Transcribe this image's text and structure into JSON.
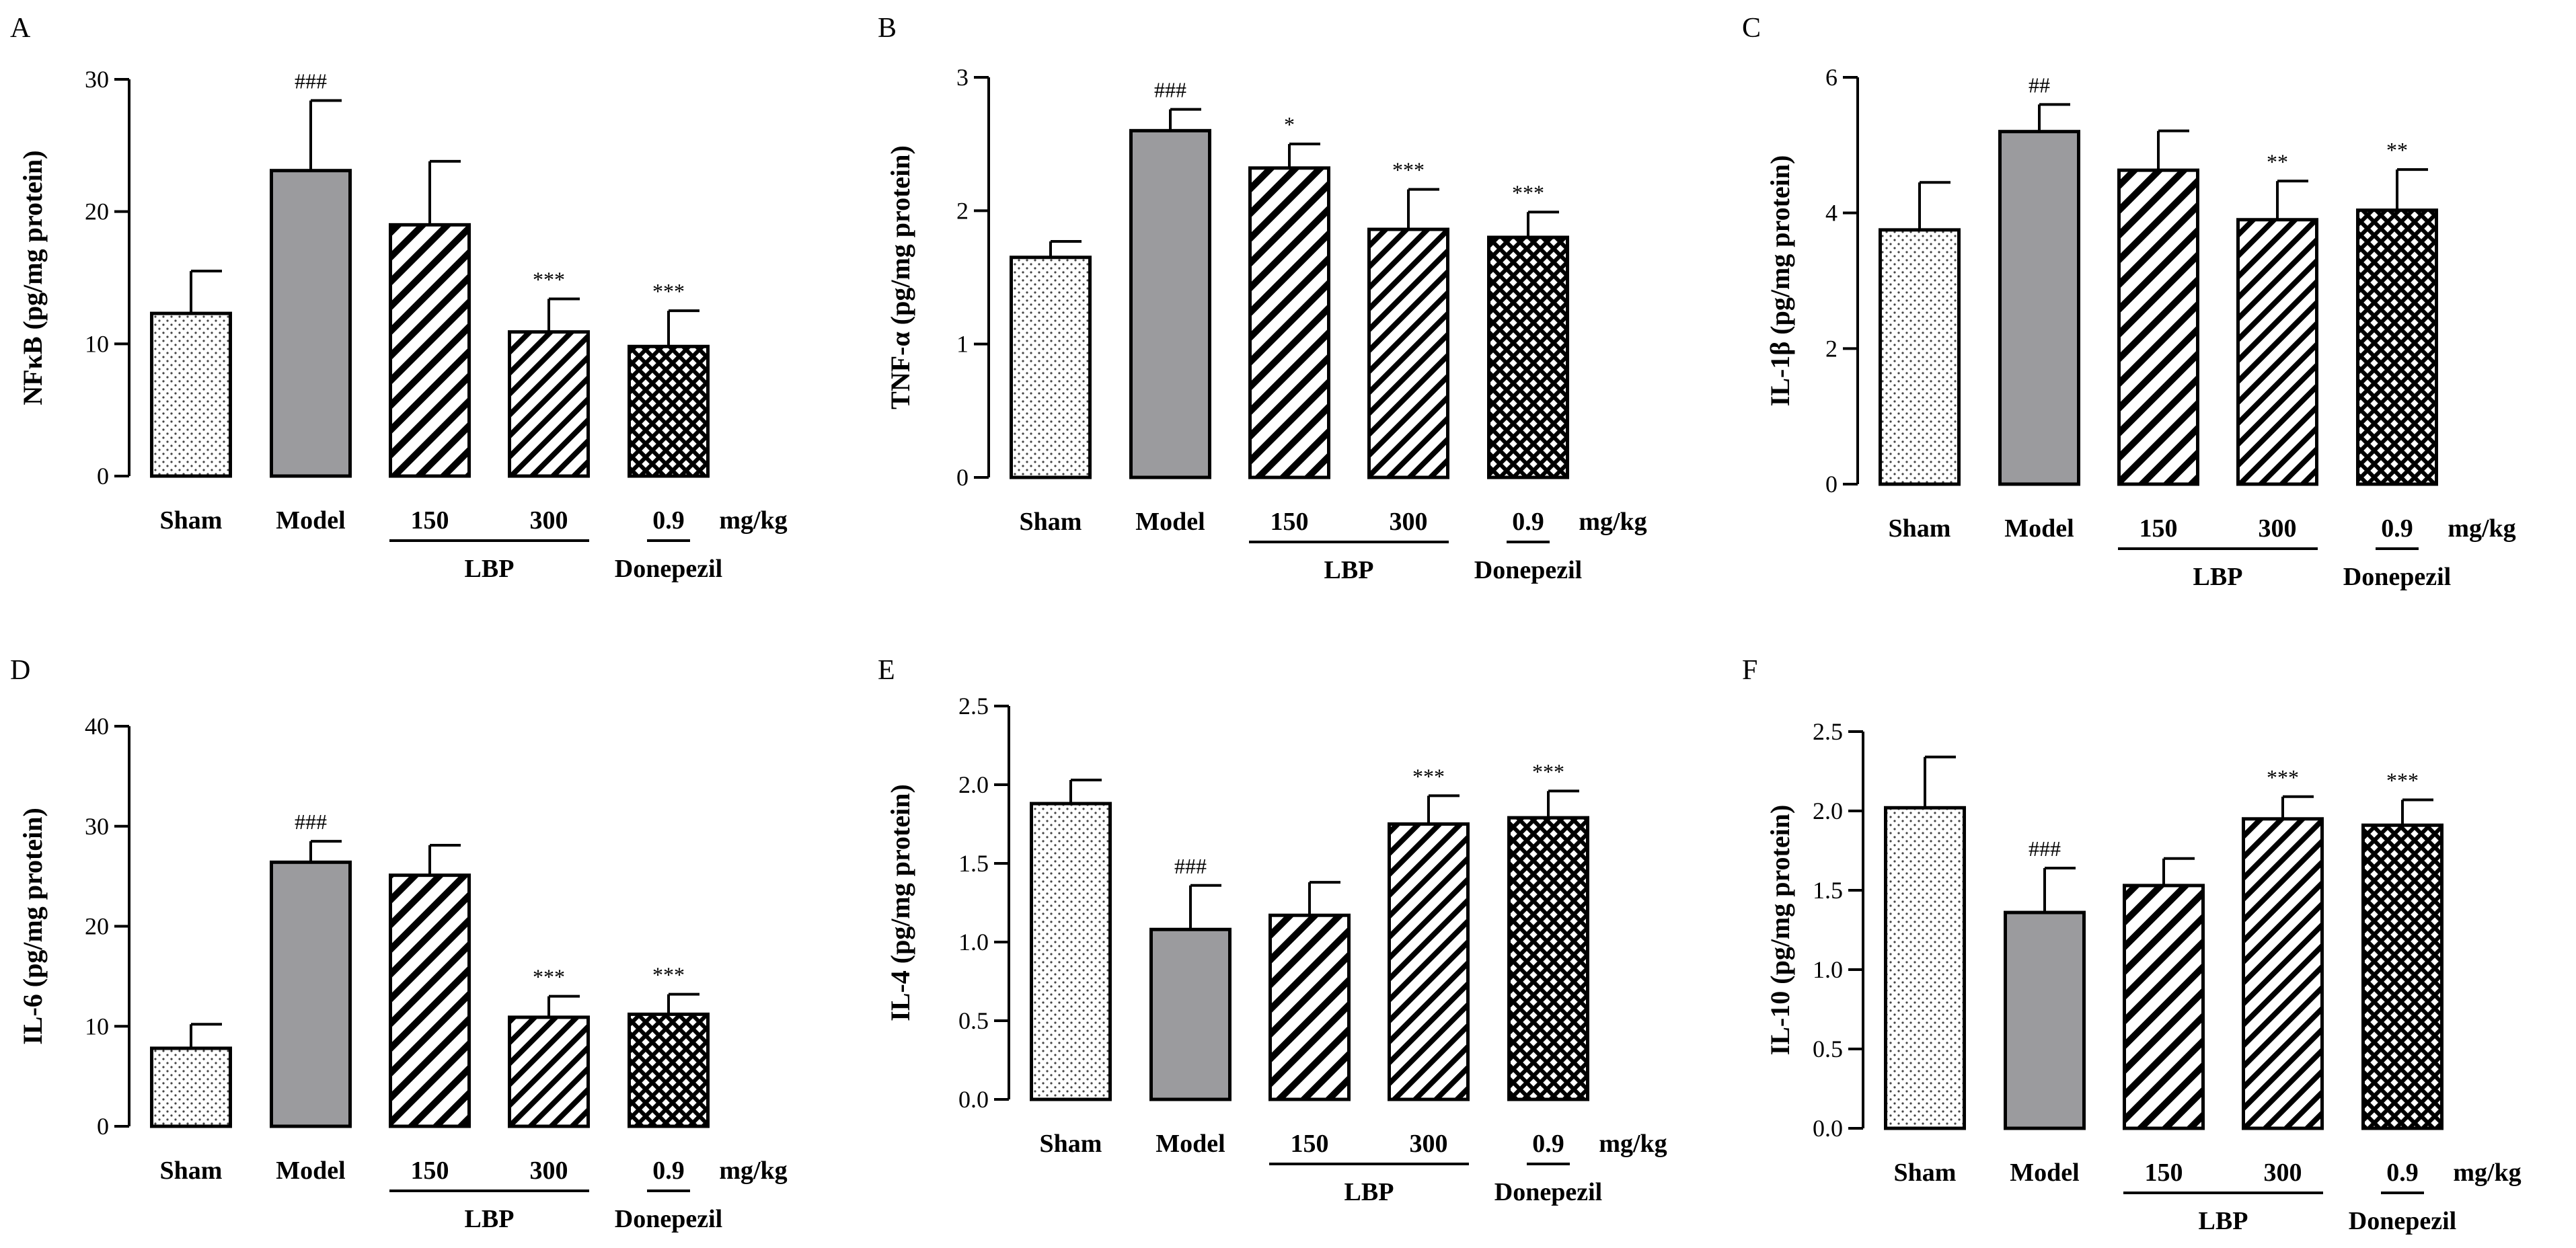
{
  "chart_data": [
    {
      "type": "bar",
      "panel": "A",
      "ylabel": "NFκB (pg/mg protein)",
      "ylim": [
        0,
        30
      ],
      "yticks": [
        0,
        10,
        20,
        30
      ],
      "tick_labels": [
        "0",
        "10",
        "20",
        "30"
      ],
      "categories": [
        "Sham",
        "Model",
        "150",
        "300",
        "0.9"
      ],
      "values": [
        12.3,
        23.1,
        19.0,
        10.9,
        9.8
      ],
      "errors": [
        3.2,
        5.3,
        4.8,
        2.5,
        2.7
      ],
      "annotations": [
        "",
        "###",
        "",
        "***",
        "***"
      ],
      "unit": "mg/kg",
      "groups": [
        {
          "label": "LBP",
          "categories": [
            "150",
            "300"
          ]
        },
        {
          "label": "Donepezil",
          "categories": [
            "0.9"
          ]
        }
      ]
    },
    {
      "type": "bar",
      "panel": "B",
      "ylabel": "TNF-α (pg/mg protein)",
      "ylim": [
        0,
        3
      ],
      "yticks": [
        0,
        1,
        2,
        3
      ],
      "tick_labels": [
        "0",
        "1",
        "2",
        "3"
      ],
      "categories": [
        "Sham",
        "Model",
        "150",
        "300",
        "0.9"
      ],
      "values": [
        1.65,
        2.6,
        2.32,
        1.86,
        1.8
      ],
      "errors": [
        0.12,
        0.16,
        0.18,
        0.3,
        0.19
      ],
      "annotations": [
        "",
        "###",
        "*",
        "***",
        "***"
      ],
      "unit": "mg/kg",
      "groups": [
        {
          "label": "LBP",
          "categories": [
            "150",
            "300"
          ]
        },
        {
          "label": "Donepezil",
          "categories": [
            "0.9"
          ]
        }
      ]
    },
    {
      "type": "bar",
      "panel": "C",
      "ylabel": "IL-1β (pg/mg protein)",
      "ylim": [
        0,
        6
      ],
      "yticks": [
        0,
        2,
        4,
        6
      ],
      "tick_labels": [
        "0",
        "2",
        "4",
        "6"
      ],
      "categories": [
        "Sham",
        "Model",
        "150",
        "300",
        "0.9"
      ],
      "values": [
        3.75,
        5.2,
        4.63,
        3.9,
        4.04
      ],
      "errors": [
        0.7,
        0.4,
        0.58,
        0.57,
        0.6
      ],
      "annotations": [
        "",
        "##",
        "",
        "**",
        "**"
      ],
      "unit": "mg/kg",
      "groups": [
        {
          "label": "LBP",
          "categories": [
            "150",
            "300"
          ]
        },
        {
          "label": "Donepezil",
          "categories": [
            "0.9"
          ]
        }
      ]
    },
    {
      "type": "bar",
      "panel": "D",
      "ylabel": "IL-6 (pg/mg protein)",
      "ylim": [
        0,
        40
      ],
      "yticks": [
        0,
        10,
        20,
        30,
        40
      ],
      "tick_labels": [
        "0",
        "10",
        "20",
        "30",
        "40"
      ],
      "categories": [
        "Sham",
        "Model",
        "150",
        "300",
        "0.9"
      ],
      "values": [
        7.8,
        26.4,
        25.1,
        10.9,
        11.2
      ],
      "errors": [
        2.4,
        2.1,
        3.0,
        2.1,
        2.0
      ],
      "annotations": [
        "",
        "###",
        "",
        "***",
        "***"
      ],
      "unit": "mg/kg",
      "groups": [
        {
          "label": "LBP",
          "categories": [
            "150",
            "300"
          ]
        },
        {
          "label": "Donepezil",
          "categories": [
            "0.9"
          ]
        }
      ]
    },
    {
      "type": "bar",
      "panel": "E",
      "ylabel": "IL-4 (pg/mg protein)",
      "ylim": [
        0,
        2.5
      ],
      "yticks": [
        0,
        0.5,
        1,
        1.5,
        2,
        2.5
      ],
      "tick_labels": [
        "0.0",
        "0.5",
        "1.0",
        "1.5",
        "2.0",
        "2.5"
      ],
      "categories": [
        "Sham",
        "Model",
        "150",
        "300",
        "0.9"
      ],
      "values": [
        1.88,
        1.08,
        1.17,
        1.75,
        1.79
      ],
      "errors": [
        0.15,
        0.28,
        0.21,
        0.18,
        0.17
      ],
      "annotations": [
        "",
        "###",
        "",
        "***",
        "***"
      ],
      "unit": "mg/kg",
      "groups": [
        {
          "label": "LBP",
          "categories": [
            "150",
            "300"
          ]
        },
        {
          "label": "Donepezil",
          "categories": [
            "0.9"
          ]
        }
      ]
    },
    {
      "type": "bar",
      "panel": "F",
      "ylabel": "IL-10 (pg/mg protein)",
      "ylim": [
        0,
        2.5
      ],
      "yticks": [
        0,
        0.5,
        1,
        1.5,
        2,
        2.5
      ],
      "tick_labels": [
        "0.0",
        "0.5",
        "1.0",
        "1.5",
        "2.0",
        "2.5"
      ],
      "categories": [
        "Sham",
        "Model",
        "150",
        "300",
        "0.9"
      ],
      "values": [
        2.02,
        1.36,
        1.53,
        1.95,
        1.91
      ],
      "errors": [
        0.32,
        0.28,
        0.17,
        0.14,
        0.16
      ],
      "annotations": [
        "",
        "###",
        "",
        "***",
        "***"
      ],
      "unit": "mg/kg",
      "groups": [
        {
          "label": "LBP",
          "categories": [
            "150",
            "300"
          ]
        },
        {
          "label": "Donepezil",
          "categories": [
            "0.9"
          ]
        }
      ]
    }
  ],
  "fill_styles": {
    "Sham": "dotted",
    "Model": "#9b9b9e",
    "150": "diagonal-wide",
    "300": "diagonal-narrow",
    "0.9": "crosshatch"
  }
}
